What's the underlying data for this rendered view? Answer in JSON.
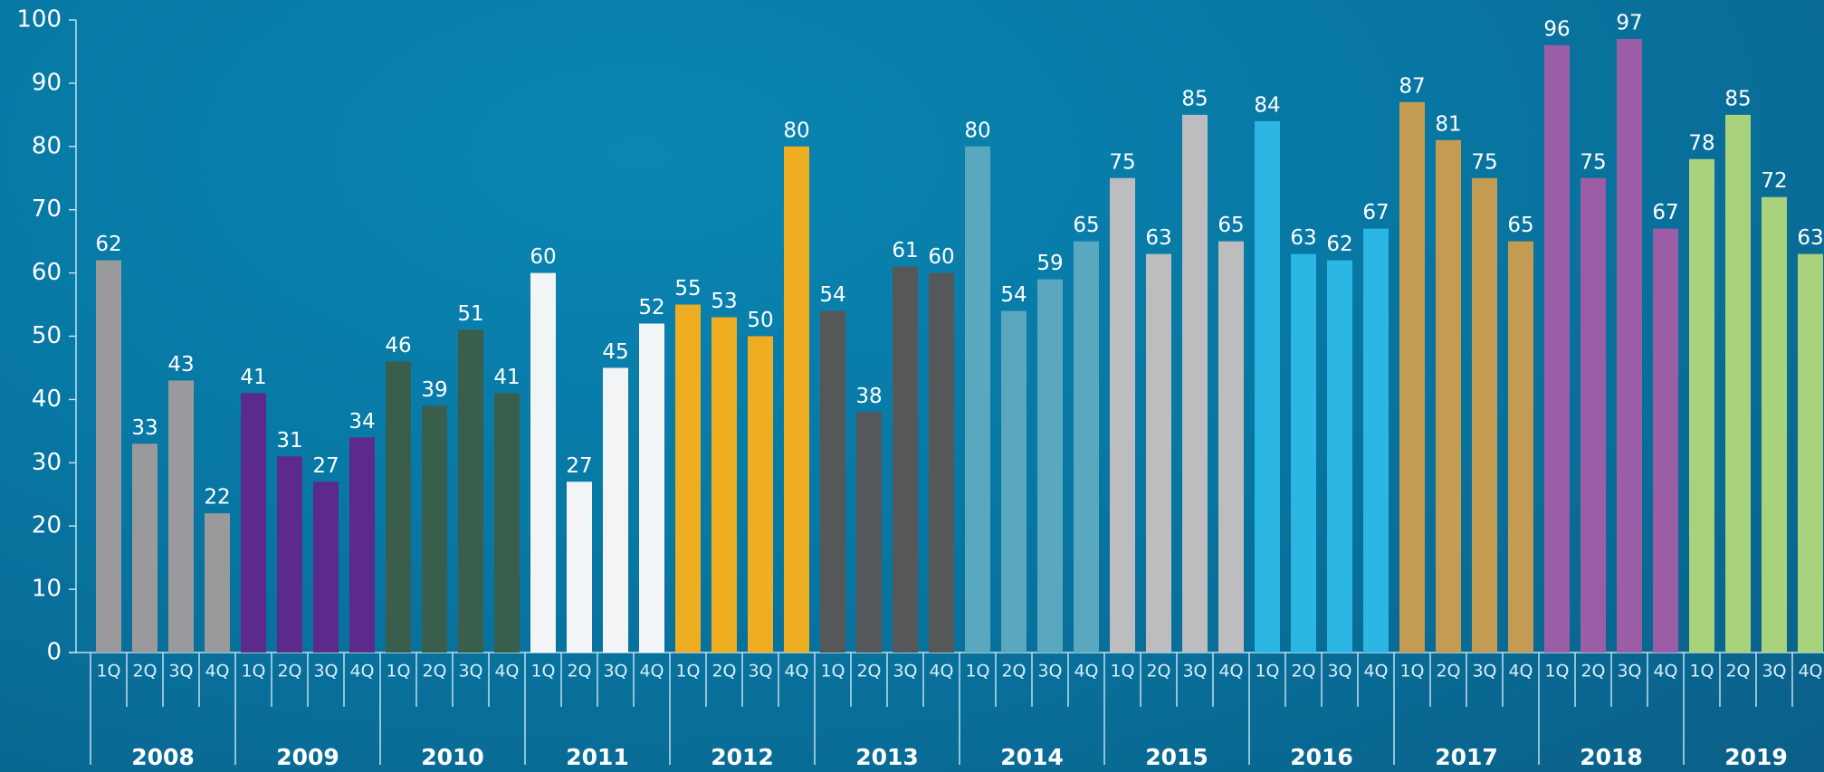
{
  "chart_data": {
    "type": "bar",
    "categories": [
      "1Q",
      "2Q",
      "3Q",
      "4Q"
    ],
    "series": [
      {
        "name": "2008",
        "color": "#9a9a9c",
        "values": [
          62,
          33,
          43,
          22
        ]
      },
      {
        "name": "2009",
        "color": "#5c2a8a",
        "values": [
          41,
          31,
          27,
          34
        ]
      },
      {
        "name": "2010",
        "color": "#3a5e4c",
        "values": [
          46,
          39,
          51,
          41
        ]
      },
      {
        "name": "2011",
        "color": "#f2f4f6",
        "values": [
          60,
          27,
          45,
          52
        ]
      },
      {
        "name": "2012",
        "color": "#efae22",
        "values": [
          55,
          53,
          50,
          80
        ]
      },
      {
        "name": "2013",
        "color": "#555759",
        "values": [
          54,
          38,
          61,
          60
        ]
      },
      {
        "name": "2014",
        "color": "#5aa7c0",
        "values": [
          80,
          54,
          59,
          65
        ]
      },
      {
        "name": "2015",
        "color": "#bdbdc0",
        "values": [
          75,
          63,
          85,
          65
        ]
      },
      {
        "name": "2016",
        "color": "#2bb6e3",
        "values": [
          84,
          63,
          62,
          67
        ]
      },
      {
        "name": "2017",
        "color": "#c49b52",
        "values": [
          87,
          81,
          75,
          65
        ]
      },
      {
        "name": "2018",
        "color": "#9b5ea6",
        "values": [
          96,
          75,
          97,
          67
        ]
      },
      {
        "name": "2019",
        "color": "#a8d27b",
        "values": [
          78,
          85,
          72,
          63
        ]
      }
    ],
    "ylim": [
      0,
      100
    ],
    "yticks": [
      0,
      10,
      20,
      30,
      40,
      50,
      60,
      70,
      80,
      90,
      100
    ]
  }
}
